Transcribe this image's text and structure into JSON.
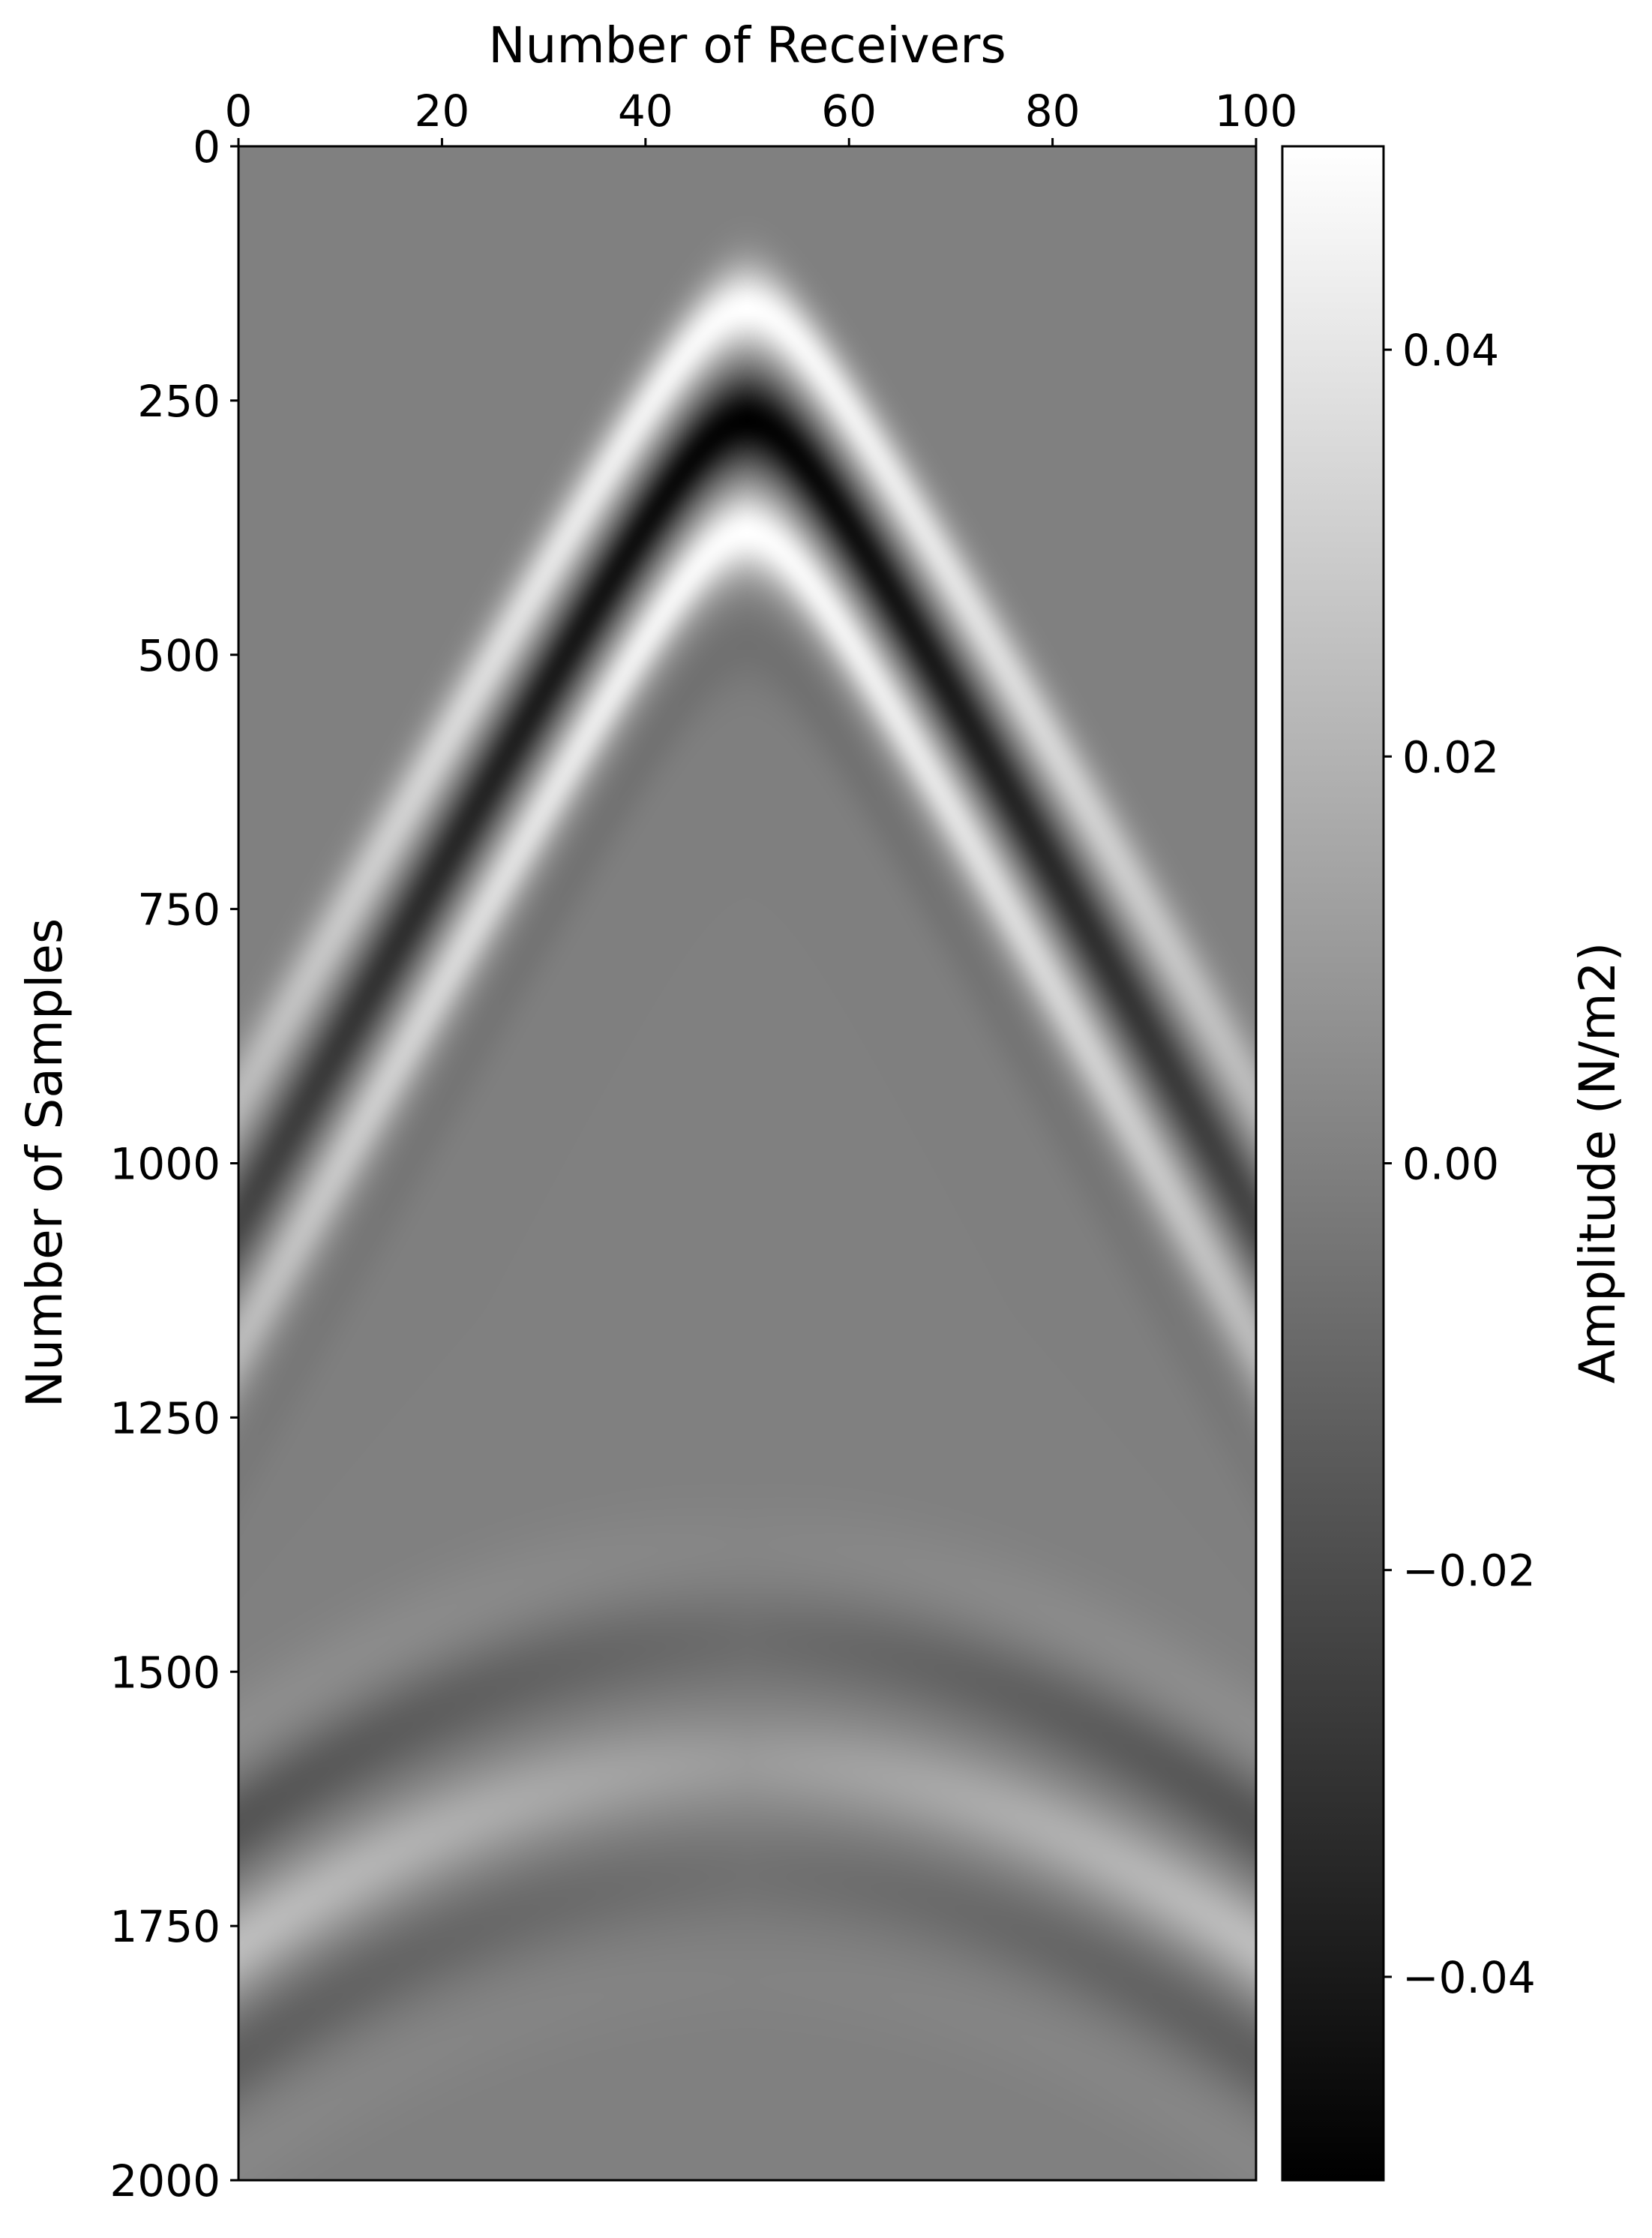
{
  "chart_data": {
    "type": "heatmap",
    "title": "",
    "xlabel": "Number of Receivers",
    "ylabel": "Number of Samples",
    "xlim": [
      0,
      100
    ],
    "ylim": [
      2000,
      0
    ],
    "x_ticks": [
      0,
      20,
      40,
      60,
      80,
      100
    ],
    "y_ticks": [
      0,
      250,
      500,
      750,
      1000,
      1250,
      1500,
      1750,
      2000
    ],
    "x_tick_labels": [
      "0",
      "20",
      "40",
      "60",
      "80",
      "100"
    ],
    "y_tick_labels": [
      "0",
      "250",
      "500",
      "750",
      "1000",
      "1250",
      "1500",
      "1750",
      "2000"
    ],
    "x_axis_position": "top",
    "colorbar": {
      "label": "Amplitude (N/m2)",
      "range": [
        -0.05,
        0.05
      ],
      "ticks": [
        0.04,
        0.02,
        0.0,
        -0.02,
        -0.04
      ],
      "tick_labels": [
        "0.04",
        "0.02",
        "0.00",
        "−0.02",
        "−0.04"
      ],
      "colormap": "gray",
      "low_color": "#000000",
      "high_color": "#ffffff"
    },
    "events": [
      {
        "name": "direct arrival",
        "shape": "hyperbola",
        "apex_receiver": 50,
        "apex_sample": 100,
        "edge_sample_at_receiver_0_and_100": 870,
        "wavelet": [
          {
            "offset_samples": 60,
            "amplitude": 0.05
          },
          {
            "offset_samples": 170,
            "amplitude": -0.05
          },
          {
            "offset_samples": 280,
            "amplitude": 0.05
          },
          {
            "offset_samples": 390,
            "amplitude": -0.006
          }
        ]
      },
      {
        "name": "reflection",
        "shape": "hyperbola",
        "apex_receiver": 50,
        "apex_sample": 1380,
        "edge_sample_at_receiver_0_and_100": 1560,
        "wavelet": [
          {
            "offset_samples": 0,
            "amplitude": 0.004
          },
          {
            "offset_samples": 90,
            "amplitude": -0.012
          },
          {
            "offset_samples": 210,
            "amplitude": 0.017
          },
          {
            "offset_samples": 320,
            "amplitude": -0.009
          },
          {
            "offset_samples": 420,
            "amplitude": 0.002
          }
        ]
      }
    ]
  }
}
